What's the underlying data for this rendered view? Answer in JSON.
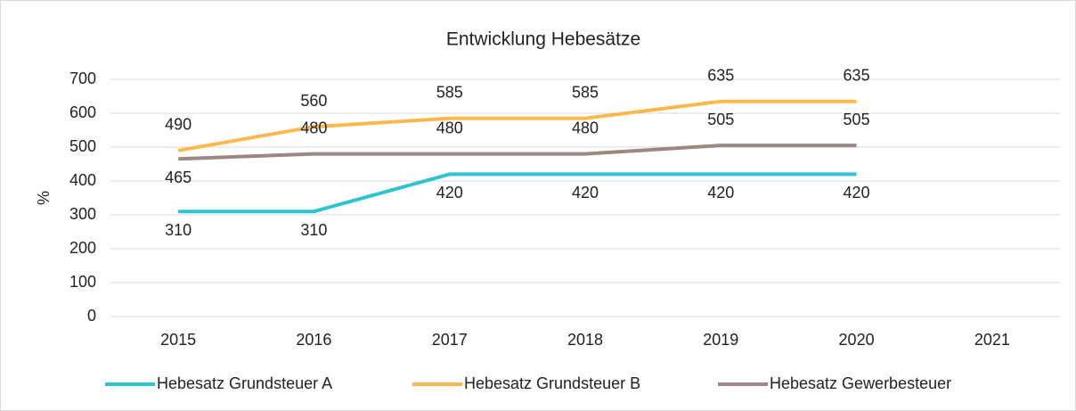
{
  "chart_data": {
    "type": "line",
    "title": "Entwicklung Hebesätze",
    "y_label": "%",
    "categories": [
      "2015",
      "2016",
      "2017",
      "2018",
      "2019",
      "2020",
      "2021"
    ],
    "series": [
      {
        "name": "Hebesatz Grundsteuer A",
        "color": "#2ec4cf",
        "values": [
          310,
          310,
          420,
          420,
          420,
          420,
          null
        ]
      },
      {
        "name": "Hebesatz Grundsteuer B",
        "color": "#fbb84d",
        "values": [
          490,
          560,
          585,
          585,
          635,
          635,
          null
        ]
      },
      {
        "name": "Hebesatz Gewerbesteuer",
        "color": "#9c8880",
        "values": [
          465,
          480,
          480,
          480,
          505,
          505,
          null
        ]
      }
    ],
    "ylim": [
      0,
      700
    ],
    "yticks": [
      0,
      100,
      200,
      300,
      400,
      500,
      600,
      700
    ],
    "grid": true,
    "legend": "bottom"
  }
}
